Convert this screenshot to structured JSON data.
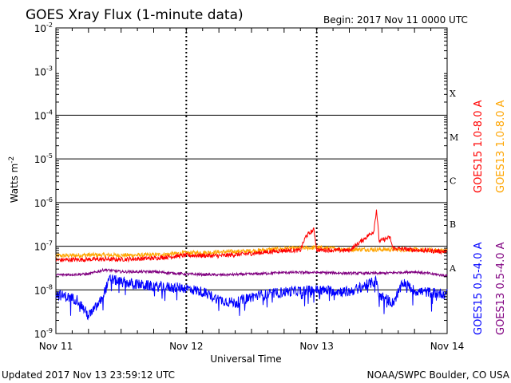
{
  "chart_data": {
    "type": "line",
    "title": "GOES Xray Flux (1-minute data)",
    "begin_label": "Begin:  2017 Nov 11 0000 UTC",
    "updated_label": "Updated 2017 Nov 13 23:59:12 UTC",
    "credit_label": "NOAA/SWPC Boulder, CO USA",
    "xlabel": "Universal Time",
    "ylabel_base": "Watts m",
    "ylabel_exp": "-2",
    "yscale": "log",
    "ylim": [
      1e-09,
      0.01
    ],
    "xlim": [
      "2017-11-11T00:00",
      "2017-11-14T00:00"
    ],
    "grid": true,
    "x_ticks": [
      {
        "label": "Nov 11",
        "t": "2017-11-11T00:00"
      },
      {
        "label": "Nov 12",
        "t": "2017-11-12T00:00"
      },
      {
        "label": "Nov 13",
        "t": "2017-11-13T00:00"
      },
      {
        "label": "Nov 14",
        "t": "2017-11-14T00:00"
      }
    ],
    "y_ticks": [
      {
        "base": "10",
        "exp": "-2",
        "value": 0.01
      },
      {
        "base": "10",
        "exp": "-3",
        "value": 0.001
      },
      {
        "base": "10",
        "exp": "-4",
        "value": 0.0001
      },
      {
        "base": "10",
        "exp": "-5",
        "value": 1e-05
      },
      {
        "base": "10",
        "exp": "-6",
        "value": 1e-06
      },
      {
        "base": "10",
        "exp": "-7",
        "value": 1e-07
      },
      {
        "base": "10",
        "exp": "-8",
        "value": 1e-08
      },
      {
        "base": "10",
        "exp": "-9",
        "value": 1e-09
      }
    ],
    "flare_classes": [
      {
        "label": "X",
        "low": 0.0001,
        "high": 0.001
      },
      {
        "label": "M",
        "low": 1e-05,
        "high": 0.0001
      },
      {
        "label": "C",
        "low": 1e-06,
        "high": 1e-05
      },
      {
        "label": "B",
        "low": 1e-07,
        "high": 1e-06
      },
      {
        "label": "A",
        "low": 1e-08,
        "high": 1e-07
      }
    ],
    "series": [
      {
        "name": "GOES13 1.0-8.0 A",
        "color": "#ffa500",
        "x": [
          "2017-11-11T00:00",
          "2017-11-11T06:00",
          "2017-11-11T12:00",
          "2017-11-11T18:00",
          "2017-11-12T00:00",
          "2017-11-12T06:00",
          "2017-11-12T12:00",
          "2017-11-12T18:00",
          "2017-11-13T00:00",
          "2017-11-13T06:00",
          "2017-11-13T12:00",
          "2017-11-13T18:00",
          "2017-11-14T00:00"
        ],
        "y": [
          6e-08,
          6.3e-08,
          6.2e-08,
          6.3e-08,
          7e-08,
          7.3e-08,
          7.8e-08,
          8.8e-08,
          9.3e-08,
          8.5e-08,
          8.4e-08,
          8.3e-08,
          8e-08
        ]
      },
      {
        "name": "GOES15 1.0-8.0 A",
        "color": "#ff0000",
        "x": [
          "2017-11-11T00:00",
          "2017-11-11T06:00",
          "2017-11-11T12:00",
          "2017-11-11T18:00",
          "2017-11-12T00:00",
          "2017-11-12T06:00",
          "2017-11-12T12:00",
          "2017-11-12T18:00",
          "2017-11-12T21:00",
          "2017-11-12T22:00",
          "2017-11-12T23:30",
          "2017-11-13T00:00",
          "2017-11-13T06:00",
          "2017-11-13T10:30",
          "2017-11-13T11:00",
          "2017-11-13T11:30",
          "2017-11-13T13:30",
          "2017-11-13T14:00",
          "2017-11-13T18:00",
          "2017-11-14T00:00"
        ],
        "y": [
          4.8e-08,
          5e-08,
          5e-08,
          5.3e-08,
          6.2e-08,
          6e-08,
          6.8e-08,
          8e-08,
          8e-08,
          1.7e-07,
          2.4e-07,
          8.2e-08,
          8e-08,
          2.2e-07,
          7e-07,
          1.3e-07,
          1.6e-07,
          9e-08,
          8.2e-08,
          7.5e-08
        ]
      },
      {
        "name": "GOES13 0.5-4.0 A",
        "color": "#800080",
        "x": [
          "2017-11-11T00:00",
          "2017-11-11T06:00",
          "2017-11-11T09:00",
          "2017-11-11T12:00",
          "2017-11-11T18:00",
          "2017-11-12T00:00",
          "2017-11-12T06:00",
          "2017-11-12T12:00",
          "2017-11-12T18:00",
          "2017-11-13T00:00",
          "2017-11-13T06:00",
          "2017-11-13T12:00",
          "2017-11-13T18:00",
          "2017-11-14T00:00"
        ],
        "y": [
          2.2e-08,
          2.3e-08,
          2.9e-08,
          2.6e-08,
          2.6e-08,
          2.3e-08,
          2.2e-08,
          2.3e-08,
          2.5e-08,
          2.5e-08,
          2.4e-08,
          2.4e-08,
          2.6e-08,
          2.1e-08
        ]
      },
      {
        "name": "GOES15 0.5-4.0 A",
        "color": "#0000ff",
        "x": [
          "2017-11-11T00:00",
          "2017-11-11T04:00",
          "2017-11-11T06:00",
          "2017-11-11T08:00",
          "2017-11-11T10:00",
          "2017-11-11T12:00",
          "2017-11-11T18:00",
          "2017-11-12T00:00",
          "2017-11-12T03:00",
          "2017-11-12T06:00",
          "2017-11-12T09:00",
          "2017-11-12T12:00",
          "2017-11-12T18:00",
          "2017-11-13T00:00",
          "2017-11-13T06:00",
          "2017-11-13T11:00",
          "2017-11-13T11:20",
          "2017-11-13T14:00",
          "2017-11-13T16:00",
          "2017-11-13T18:00",
          "2017-11-14T00:00"
        ],
        "y": [
          8e-09,
          6e-09,
          2.5e-09,
          5e-09,
          1.8e-08,
          1.5e-08,
          1.2e-08,
          1.1e-08,
          9e-09,
          6e-09,
          5e-09,
          7e-09,
          9e-09,
          1e-08,
          9e-09,
          1.6e-08,
          8e-09,
          5e-09,
          1.5e-08,
          9.5e-09,
          8e-09
        ]
      }
    ]
  }
}
